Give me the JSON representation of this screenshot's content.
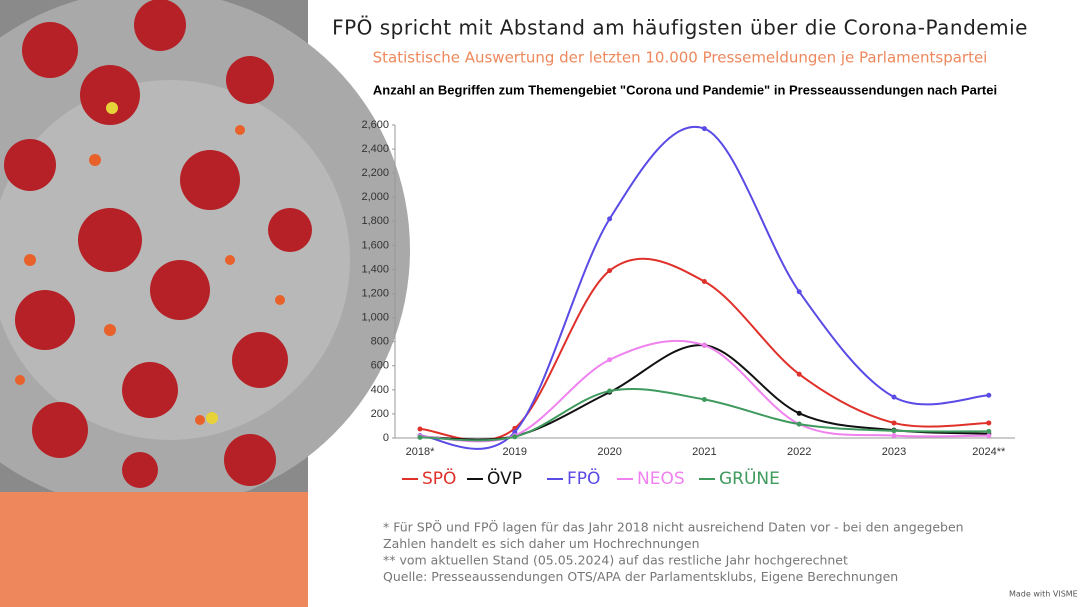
{
  "chart_data": {
    "type": "line",
    "title": "FPÖ spricht mit Abstand am häufigsten über die Corona-Pandemie",
    "subtitle": "Statistische Auswertung der letzten 10.000 Pressemeldungen je Parlamentspartei",
    "chart_title": "Anzahl an Begriffen zum Themengebiet \"Corona und Pandemie\" in Presseaussendungen nach Partei",
    "categories": [
      "2018*",
      "2019",
      "2020",
      "2021",
      "2022",
      "2023",
      "2024**"
    ],
    "series": [
      {
        "name": "SPÖ",
        "color": "#e0302a",
        "values": [
          75,
          80,
          1390,
          1300,
          530,
          125,
          125
        ]
      },
      {
        "name": "ÖVP",
        "color": "#111111",
        "values": [
          10,
          15,
          380,
          770,
          205,
          65,
          35
        ]
      },
      {
        "name": "FPÖ",
        "color": "#5a4ae6",
        "values": [
          20,
          50,
          1820,
          2570,
          1215,
          340,
          355
        ]
      },
      {
        "name": "NEOS",
        "color": "#ef82ef",
        "values": [
          15,
          20,
          650,
          770,
          115,
          20,
          20
        ]
      },
      {
        "name": "GRÜNE",
        "color": "#3f9a5e",
        "values": [
          5,
          10,
          390,
          320,
          115,
          60,
          55
        ]
      }
    ],
    "ylim": [
      0,
      2600
    ],
    "yticks": [
      0,
      200,
      400,
      600,
      800,
      {
        "value": 1000,
        "label": "1,000"
      },
      {
        "value": 1200,
        "label": "1,200"
      },
      {
        "value": 1400,
        "label": "1,400"
      },
      {
        "value": 1600,
        "label": "1,600"
      },
      {
        "value": 1800,
        "label": "1,800"
      },
      {
        "value": 2000,
        "label": "2,000"
      },
      {
        "value": 2200,
        "label": "2,200"
      },
      {
        "value": 2400,
        "label": "2,400"
      },
      {
        "value": 2600,
        "label": "2,600"
      }
    ],
    "grid": false,
    "footnotes": [
      "* Für SPÖ und FPÖ lagen für das Jahr 2018 nicht ausreichend Daten vor - bei den angegeben",
      "Zahlen handelt es sich daher um Hochrechnungen",
      "** vom aktuellen Stand (05.05.2024) auf das restliche Jahr hochgerechnet",
      "Quelle: Presseaussendungen OTS/APA der Parlamentsklubs, Eigene Berechnungen"
    ],
    "watermark": "Made with VISME"
  }
}
